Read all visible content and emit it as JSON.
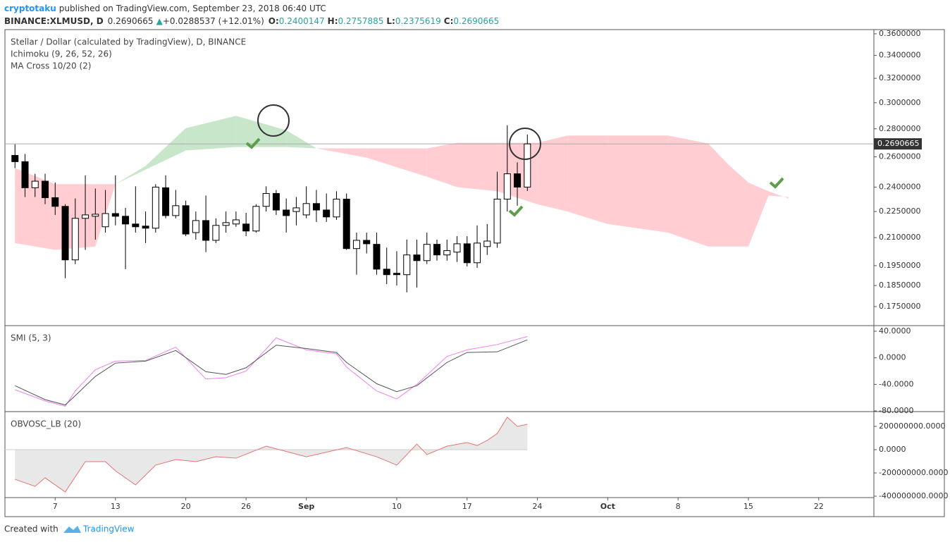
{
  "header": {
    "author": "cryptotaku",
    "published": "published on TradingView.com, September 23, 2018 06:40 UTC",
    "symbol": "BINANCE:XLMUSD, D",
    "last": "0.2690665",
    "arrow": "▲",
    "change": "+0.0288537 (+12.01%)",
    "ohlc": [
      {
        "label": "O:",
        "value": "0.2400147"
      },
      {
        "label": "H:",
        "value": "0.2757885"
      },
      {
        "label": "L:",
        "value": "0.2375619"
      },
      {
        "label": "C:",
        "value": "0.2690665"
      }
    ]
  },
  "footer": {
    "created": "Created with",
    "brand": "TradingView"
  },
  "chart_data": {
    "type": "candlestick",
    "title": "Stellar / Dollar (calculated by TradingView), D, BINANCE",
    "indicators": [
      "Ichimoku (9, 26, 52, 26)",
      "MA Cross 10/20 (2)"
    ],
    "log_scale": true,
    "ylim": [
      0.1664,
      0.364
    ],
    "yticks": [
      {
        "value": 0.36,
        "label": "0.3600000"
      },
      {
        "value": 0.34,
        "label": "0.3400000"
      },
      {
        "value": 0.32,
        "label": "0.3200000"
      },
      {
        "value": 0.3,
        "label": "0.3000000"
      },
      {
        "value": 0.28,
        "label": "0.2800000"
      },
      {
        "value": 0.26,
        "label": "0.2600000"
      },
      {
        "value": 0.24,
        "label": "0.2400000"
      },
      {
        "value": 0.225,
        "label": "0.2250000"
      },
      {
        "value": 0.21,
        "label": "0.2100000"
      },
      {
        "value": 0.195,
        "label": "0.1950000"
      },
      {
        "value": 0.185,
        "label": "0.1850000"
      },
      {
        "value": 0.175,
        "label": "0.1750000"
      }
    ],
    "xlim": [
      "08-02",
      "10-27"
    ],
    "xticks": [
      {
        "value": "08-07",
        "label": "7"
      },
      {
        "value": "08-13",
        "label": "13"
      },
      {
        "value": "08-20",
        "label": "20"
      },
      {
        "value": "08-26",
        "label": "26"
      },
      {
        "value": "09-01",
        "label": "Sep"
      },
      {
        "value": "09-10",
        "label": "10"
      },
      {
        "value": "09-17",
        "label": "17"
      },
      {
        "value": "09-24",
        "label": "24"
      },
      {
        "value": "10-01",
        "label": "Oct"
      },
      {
        "value": "10-08",
        "label": "8"
      },
      {
        "value": "10-15",
        "label": "15"
      },
      {
        "value": "10-22",
        "label": "22"
      }
    ],
    "x": [
      "08-03",
      "08-04",
      "08-05",
      "08-06",
      "08-07",
      "08-08",
      "08-09",
      "08-10",
      "08-11",
      "08-12",
      "08-13",
      "08-14",
      "08-15",
      "08-16",
      "08-17",
      "08-18",
      "08-19",
      "08-20",
      "08-21",
      "08-22",
      "08-23",
      "08-24",
      "08-25",
      "08-26",
      "08-27",
      "08-28",
      "08-29",
      "08-30",
      "08-31",
      "09-01",
      "09-02",
      "09-03",
      "09-04",
      "09-05",
      "09-06",
      "09-07",
      "09-08",
      "09-09",
      "09-10",
      "09-11",
      "09-12",
      "09-13",
      "09-14",
      "09-15",
      "09-16",
      "09-17",
      "09-18",
      "09-19",
      "09-20",
      "09-21",
      "09-22",
      "09-23"
    ],
    "open": [
      0.261,
      0.2567,
      0.2396,
      0.2438,
      0.2334,
      0.2281,
      0.198,
      0.221,
      0.2222,
      0.2161,
      0.2238,
      0.2222,
      0.2177,
      0.2165,
      0.2153,
      0.2396,
      0.2226,
      0.2285,
      0.2128,
      0.2197,
      0.2085,
      0.2169,
      0.2177,
      0.2177,
      0.2137,
      0.2281,
      0.236,
      0.2259,
      0.225,
      0.223,
      0.2298,
      0.2259,
      0.2218,
      0.2325,
      0.204,
      0.2085,
      0.2063,
      0.1932,
      0.1911,
      0.1904,
      0.2006,
      0.1976,
      0.2063,
      0.2006,
      0.2021,
      0.2066,
      0.1965,
      0.2051,
      0.207,
      0.2325,
      0.2486,
      0.2400147
    ],
    "high": [
      0.2688,
      0.262,
      0.2486,
      0.2486,
      0.2429,
      0.2294,
      0.2329,
      0.2476,
      0.2391,
      0.2382,
      0.2476,
      0.2272,
      0.2405,
      0.225,
      0.2419,
      0.2476,
      0.2382,
      0.2316,
      0.225,
      0.2347,
      0.221,
      0.225,
      0.225,
      0.2242,
      0.2294,
      0.2405,
      0.2382,
      0.2329,
      0.2338,
      0.2405,
      0.2382,
      0.236,
      0.2374,
      0.236,
      0.2128,
      0.2128,
      0.2128,
      0.2045,
      0.2026,
      0.2089,
      0.2089,
      0.2128,
      0.2089,
      0.2089,
      0.2108,
      0.2108,
      0.2169,
      0.2177,
      0.25,
      0.2827,
      0.2562,
      0.2757885
    ],
    "low": [
      0.2524,
      0.2338,
      0.2338,
      0.2294,
      0.223,
      0.1886,
      0.1958,
      0.2033,
      0.2089,
      0.2128,
      0.2169,
      0.1932,
      0.2128,
      0.207,
      0.2128,
      0.221,
      0.221,
      0.2108,
      0.2089,
      0.2021,
      0.207,
      0.2128,
      0.2161,
      0.2108,
      0.2128,
      0.225,
      0.223,
      0.2128,
      0.2169,
      0.221,
      0.2189,
      0.2189,
      0.2201,
      0.2033,
      0.1904,
      0.2014,
      0.1904,
      0.1857,
      0.185,
      0.1817,
      0.184,
      0.1958,
      0.1976,
      0.1976,
      0.1969,
      0.1946,
      0.1939,
      0.2006,
      0.2044,
      0.225,
      0.2285,
      0.2375619
    ],
    "close": [
      0.2567,
      0.2396,
      0.2438,
      0.2334,
      0.2281,
      0.198,
      0.221,
      0.223,
      0.2234,
      0.2238,
      0.2222,
      0.2177,
      0.2161,
      0.2153,
      0.24,
      0.2226,
      0.2285,
      0.212,
      0.2197,
      0.2085,
      0.2169,
      0.2185,
      0.2201,
      0.2137,
      0.2281,
      0.236,
      0.2259,
      0.2226,
      0.2272,
      0.2298,
      0.2259,
      0.2218,
      0.2325,
      0.204,
      0.2085,
      0.2066,
      0.1932,
      0.1904,
      0.1904,
      0.2006,
      0.1976,
      0.2063,
      0.2006,
      0.2029,
      0.2066,
      0.1965,
      0.207,
      0.2081,
      0.2325,
      0.2486,
      0.24,
      0.2690665
    ],
    "up_color": "#ffffff",
    "down_color": "#000000",
    "last_price": {
      "value": 0.2690665,
      "label": "0.2690665"
    },
    "cloud": {
      "x": [
        "08-03",
        "08-07",
        "08-11",
        "08-13",
        "08-16",
        "08-20",
        "08-25",
        "08-30",
        "09-02",
        "09-07",
        "09-13",
        "09-16",
        "09-20",
        "09-24",
        "09-27",
        "10-01",
        "10-07",
        "10-11",
        "10-13",
        "10-15",
        "10-17",
        "10-19"
      ],
      "span_a": [
        0.207,
        0.2033,
        0.2051,
        0.2419,
        0.2538,
        0.2805,
        0.2898,
        0.279,
        0.2659,
        0.2595,
        0.2467,
        0.24,
        0.2374,
        0.2294,
        0.225,
        0.2177,
        0.2128,
        0.2051,
        0.2051,
        0.2051,
        0.2347,
        0.2338
      ],
      "span_b": [
        0.2524,
        0.2419,
        0.2419,
        0.2419,
        0.2514,
        0.2644,
        0.2668,
        0.2668,
        0.2659,
        0.2659,
        0.2659,
        0.2698,
        0.2698,
        0.2698,
        0.2751,
        0.2751,
        0.2751,
        0.2693,
        0.2548,
        0.2429,
        0.2374,
        0.2329
      ],
      "up_color": "#c8e6c9",
      "down_color": "#ffcdd2"
    },
    "smi": {
      "title": "SMI (5, 3)",
      "ylim": [
        -80,
        47.4
      ],
      "yticks": [
        {
          "value": 40,
          "label": "40.0000"
        },
        {
          "value": 0,
          "label": "0.0000"
        },
        {
          "value": -40,
          "label": "-40.0000"
        },
        {
          "value": -80,
          "label": "-80.0000"
        }
      ],
      "x": [
        "08-03",
        "08-06",
        "08-08",
        "08-09",
        "08-11",
        "08-13",
        "08-16",
        "08-19",
        "08-22",
        "08-24",
        "08-26",
        "08-29",
        "09-01",
        "09-04",
        "09-05",
        "09-08",
        "09-10",
        "09-12",
        "09-15",
        "09-17",
        "09-20",
        "09-23"
      ],
      "values": [
        -42,
        -63,
        -71,
        -57,
        -28,
        -8,
        -5,
        11,
        -21,
        -25,
        -15,
        19,
        14,
        8,
        -7,
        -39,
        -51,
        -42,
        -7,
        8,
        9,
        27
      ],
      "color": "#555555",
      "signal": [
        -48,
        -65,
        -73,
        -50,
        -18,
        -5,
        -4,
        16,
        -32,
        -30,
        -20,
        30,
        12,
        6,
        -14,
        -50,
        -62,
        -40,
        2,
        12,
        20,
        32
      ],
      "signal_color": "#ee82ee"
    },
    "obv": {
      "title": "OBVOSC_LB (20)",
      "ylim": [
        -406000000,
        321000000
      ],
      "yticks": [
        {
          "value": 200000000,
          "label": "200000000.0000"
        },
        {
          "value": 0,
          "label": "0.0000"
        },
        {
          "value": -200000000,
          "label": "-200000000.0000"
        },
        {
          "value": -400000000,
          "label": "-400000000.0000"
        }
      ],
      "x": [
        "08-03",
        "08-05",
        "08-06",
        "08-08",
        "08-10",
        "08-12",
        "08-13",
        "08-15",
        "08-17",
        "08-19",
        "08-21",
        "08-23",
        "08-25",
        "08-28",
        "09-01",
        "09-05",
        "09-08",
        "09-10",
        "09-12",
        "09-13",
        "09-15",
        "09-17",
        "09-18",
        "09-19",
        "09-20",
        "09-21",
        "09-22",
        "09-23"
      ],
      "values": [
        -255000000,
        -315000000,
        -242000000,
        -364000000,
        -103000000,
        -103000000,
        -182000000,
        -303000000,
        -133000000,
        -85000000,
        -103000000,
        -61000000,
        -73000000,
        30000000,
        -61000000,
        18000000,
        -61000000,
        -133000000,
        48000000,
        -42000000,
        30000000,
        61000000,
        36000000,
        79000000,
        139000000,
        279000000,
        200000000,
        218000000
      ],
      "color": "#e57373",
      "fill": "#e8e8e8"
    }
  }
}
